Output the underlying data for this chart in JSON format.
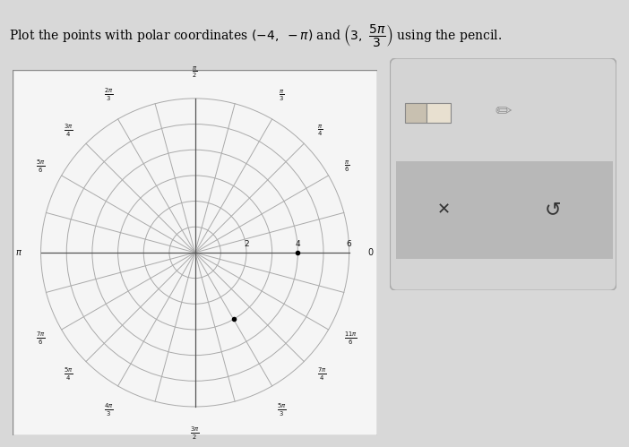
{
  "polar_radii": [
    1,
    2,
    3,
    4,
    5,
    6
  ],
  "grid_color": "#aaaaaa",
  "bg_color": "#f5f5f5",
  "outer_bg": "#cccccc",
  "axis_color": "#555555",
  "label_color": "#111111",
  "max_r": 6,
  "r_labels": [
    2,
    4,
    6
  ],
  "num_radial_lines": 12,
  "point1_r": -4,
  "point1_theta_mult": 1,
  "point2_r": 3,
  "point2_theta_mult_num": 5,
  "point2_theta_mult_den": 3,
  "point_color": "black",
  "point_size": 3,
  "panel_bg": "#d4d4d4",
  "panel_bar_bg": "#b8b8b8",
  "panel_border": "#aaaaaa"
}
